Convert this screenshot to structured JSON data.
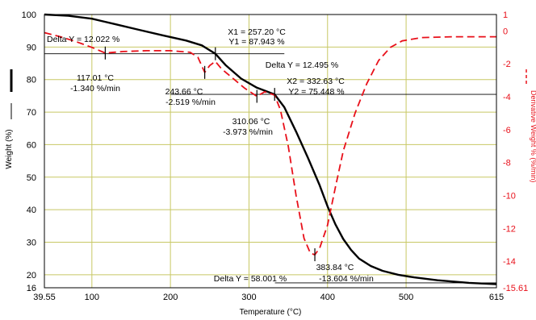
{
  "chart_data": {
    "type": "line",
    "xlabel": "Temperature (°C)",
    "ylabel": "Weight (%)",
    "y2label": "Derivative Weight % (%/min)",
    "xlim": [
      39.55,
      615
    ],
    "ylim": [
      16,
      100
    ],
    "y2lim": [
      -15.61,
      1
    ],
    "x_ticks": [
      "39.55",
      "100",
      "200",
      "300",
      "400",
      "500",
      "615"
    ],
    "y_ticks": [
      "100",
      "90",
      "80",
      "70",
      "60",
      "50",
      "40",
      "30",
      "20",
      "16"
    ],
    "y2_ticks": [
      "1",
      "0",
      "-2",
      "-4",
      "-6",
      "-8",
      "-10",
      "-12",
      "-14",
      "-15.61"
    ],
    "grid": true,
    "series": [
      {
        "name": "",
        "axis": "left",
        "color": "#000000",
        "style": "solid",
        "x": [
          39.55,
          70,
          100,
          130,
          160,
          190,
          220,
          240,
          257.2,
          270,
          290,
          310.06,
          332.63,
          345,
          360,
          375,
          390,
          400,
          410,
          420,
          430,
          440,
          455,
          470,
          490,
          510,
          540,
          580,
          615
        ],
        "y": [
          100,
          99.6,
          98.7,
          97.0,
          95.3,
          93.6,
          92.0,
          90.5,
          87.943,
          84.5,
          80.3,
          77.5,
          75.448,
          71.5,
          64.0,
          56.0,
          47.5,
          41.0,
          35.5,
          31.0,
          27.6,
          25.0,
          22.7,
          21.2,
          20.0,
          19.2,
          18.3,
          17.5,
          17.1
        ]
      },
      {
        "name": "",
        "axis": "right",
        "color": "#e8101a",
        "style": "dashed",
        "x": [
          39.55,
          60,
          80,
          100,
          117.01,
          140,
          170,
          200,
          225,
          235,
          243.66,
          250,
          257.2,
          265,
          280,
          295,
          310.06,
          320,
          332.63,
          340,
          350,
          360,
          370,
          378,
          383.84,
          390,
          400,
          410,
          420,
          435,
          450,
          465,
          480,
          495,
          520,
          560,
          615
        ],
        "y": [
          -0.1,
          -0.35,
          -0.65,
          -1.0,
          -1.34,
          -1.25,
          -1.2,
          -1.2,
          -1.3,
          -1.6,
          -2.519,
          -2.1,
          -1.85,
          -2.3,
          -2.9,
          -3.5,
          -3.973,
          -3.7,
          -3.9,
          -4.8,
          -7.0,
          -10.0,
          -12.6,
          -13.5,
          -13.604,
          -13.2,
          -11.8,
          -9.5,
          -7.3,
          -5.0,
          -3.2,
          -1.8,
          -1.0,
          -0.6,
          -0.4,
          -0.35,
          -0.35
        ]
      }
    ],
    "markers": [
      {
        "x": 117.01,
        "y": -1.34,
        "axis": "right"
      },
      {
        "x": 243.66,
        "y": -2.519,
        "axis": "right"
      },
      {
        "x": 257.2,
        "y": 87.943,
        "axis": "left"
      },
      {
        "x": 310.06,
        "y": -3.973,
        "axis": "right"
      },
      {
        "x": 332.63,
        "y": 75.448,
        "axis": "left"
      },
      {
        "x": 383.84,
        "y": -13.604,
        "axis": "right"
      }
    ],
    "annotations": [
      {
        "text": "Delta Y = 12.022 %"
      },
      {
        "text": "117.01 °C"
      },
      {
        "text": "-1.340 %/min"
      },
      {
        "text": "X1 = 257.20 °C"
      },
      {
        "text": "Y1 = 87.943 %"
      },
      {
        "text": "243.66 °C"
      },
      {
        "text": "-2.519 %/min"
      },
      {
        "text": "Delta Y = 12.495 %"
      },
      {
        "text": "X2 = 332.63 °C"
      },
      {
        "text": "Y2 = 75.448 %"
      },
      {
        "text": "310.06 °C"
      },
      {
        "text": "-3.973 %/min"
      },
      {
        "text": "383.84 °C"
      },
      {
        "text": "Delta Y = 58.001 %"
      },
      {
        "text": "-13.604 %/min"
      }
    ]
  }
}
